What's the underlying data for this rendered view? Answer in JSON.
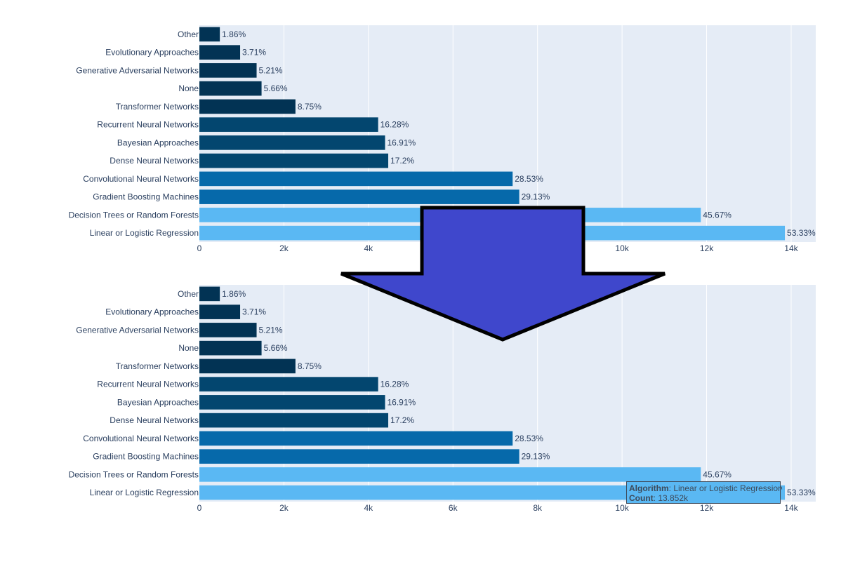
{
  "chart_data": [
    {
      "type": "bar",
      "orientation": "horizontal",
      "categories": [
        "Other",
        "Evolutionary Approaches",
        "Generative Adversarial Networks",
        "None",
        "Transformer Networks",
        "Recurrent Neural Networks",
        "Bayesian Approaches",
        "Dense Neural Networks",
        "Convolutional Neural Networks",
        "Gradient Boosting Machines",
        "Decision Trees or Random Forests",
        "Linear or Logistic Regression"
      ],
      "values": [
        484,
        964,
        1354,
        1471,
        2273,
        4229,
        4393,
        4468,
        7411,
        7567,
        11863,
        13852
      ],
      "labels": [
        "1.86%",
        "3.71%",
        "5.21%",
        "5.66%",
        "8.75%",
        "16.28%",
        "16.91%",
        "17.2%",
        "28.53%",
        "29.13%",
        "45.67%",
        "53.33%"
      ],
      "colors": [
        "#023354",
        "#023354",
        "#023354",
        "#023354",
        "#023354",
        "#03466f",
        "#03466f",
        "#03466f",
        "#0669aa",
        "#0669aa",
        "#5ab8f3",
        "#5ab8f3"
      ],
      "xticks": [
        0,
        2000,
        4000,
        6000,
        8000,
        10000,
        12000,
        14000
      ],
      "xtick_labels": [
        "0",
        "2k",
        "4k",
        "6k",
        "8k",
        "10k",
        "12k",
        "14k"
      ],
      "xlim": [
        0,
        14582
      ],
      "grid": true,
      "background": "#e5ecf6"
    },
    {
      "type": "bar",
      "orientation": "horizontal",
      "categories": [
        "Other",
        "Evolutionary Approaches",
        "Generative Adversarial Networks",
        "None",
        "Transformer Networks",
        "Recurrent Neural Networks",
        "Bayesian Approaches",
        "Dense Neural Networks",
        "Convolutional Neural Networks",
        "Gradient Boosting Machines",
        "Decision Trees or Random Forests",
        "Linear or Logistic Regression"
      ],
      "values": [
        484,
        964,
        1354,
        1471,
        2273,
        4229,
        4393,
        4468,
        7411,
        7567,
        11863,
        13852
      ],
      "labels": [
        "1.86%",
        "3.71%",
        "5.21%",
        "5.66%",
        "8.75%",
        "16.28%",
        "16.91%",
        "17.2%",
        "28.53%",
        "29.13%",
        "45.67%",
        "53.33%"
      ],
      "colors": [
        "#023354",
        "#023354",
        "#023354",
        "#023354",
        "#023354",
        "#03466f",
        "#03466f",
        "#03466f",
        "#0669aa",
        "#0669aa",
        "#5ab8f3",
        "#5ab8f3"
      ],
      "xticks": [
        0,
        2000,
        4000,
        6000,
        8000,
        10000,
        12000,
        14000
      ],
      "xtick_labels": [
        "0",
        "2k",
        "4k",
        "6k",
        "8k",
        "10k",
        "12k",
        "14k"
      ],
      "xlim": [
        0,
        14582
      ],
      "grid": true,
      "background": "#e5ecf6"
    }
  ],
  "tooltip": {
    "algorithm_key": "Algorithm",
    "algorithm_value": ": Linear or Logistic Regression",
    "count_key": "Count",
    "count_value": ": 13.852k",
    "color": "#5ab8f3"
  },
  "arrow": {
    "color": "#3f47cc",
    "direction": "down"
  }
}
